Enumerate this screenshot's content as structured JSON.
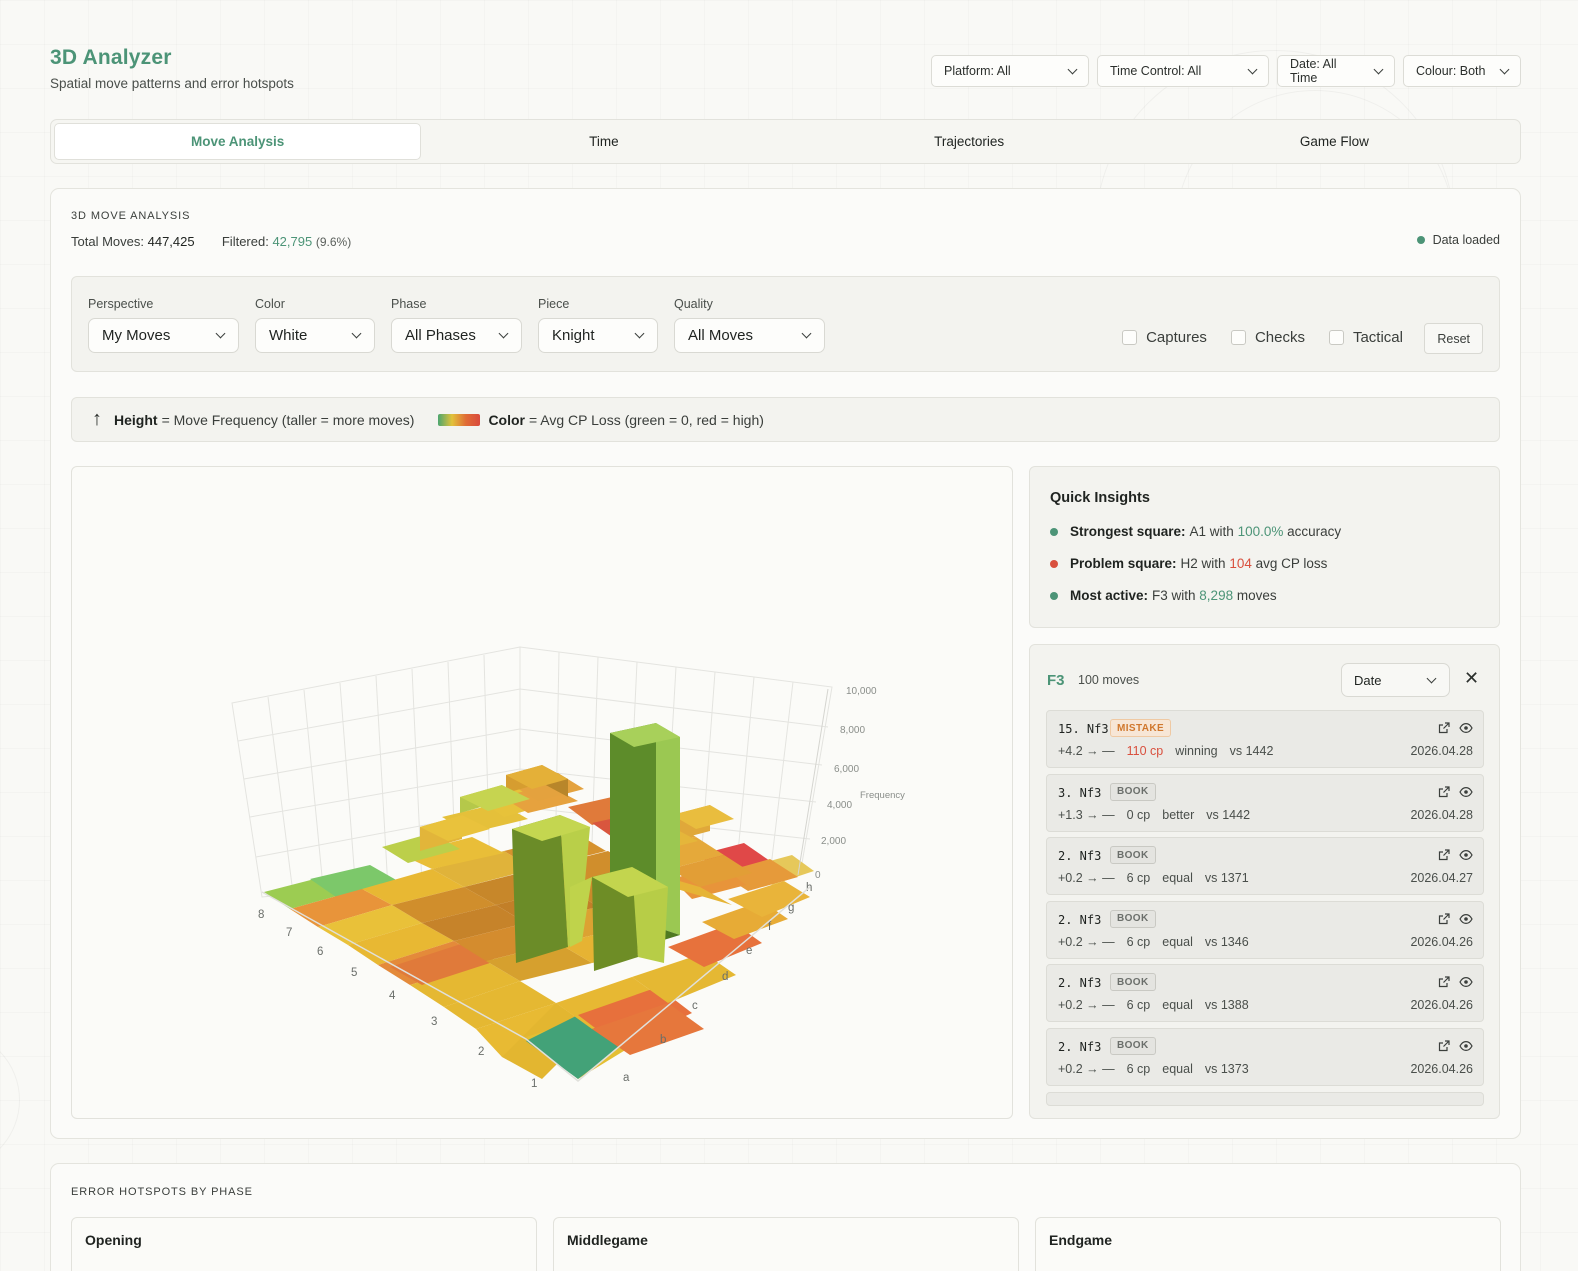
{
  "header": {
    "title": "3D Analyzer",
    "subtitle": "Spatial move patterns and error hotspots"
  },
  "filters": [
    {
      "label": "Platform: All"
    },
    {
      "label": "Time Control: All"
    },
    {
      "label": "Date: All Time"
    },
    {
      "label": "Colour: Both"
    }
  ],
  "tabs": [
    {
      "label": "Move Analysis",
      "active": true
    },
    {
      "label": "Time"
    },
    {
      "label": "Trajectories"
    },
    {
      "label": "Game Flow"
    }
  ],
  "analysis": {
    "section_label": "3D MOVE ANALYSIS",
    "total_label": "Total Moves:",
    "total_value": "447,425",
    "filtered_label": "Filtered:",
    "filtered_value": "42,795",
    "filtered_pct": "(9.6%)",
    "status": "Data loaded"
  },
  "controls": {
    "perspective": {
      "label": "Perspective",
      "value": "My Moves"
    },
    "color": {
      "label": "Color",
      "value": "White"
    },
    "phase": {
      "label": "Phase",
      "value": "All Phases"
    },
    "piece": {
      "label": "Piece",
      "value": "Knight"
    },
    "quality": {
      "label": "Quality",
      "value": "All Moves"
    },
    "checkboxes": [
      "Captures",
      "Checks",
      "Tactical"
    ],
    "reset": "Reset"
  },
  "legend": {
    "height_label": "Height",
    "height_desc": "= Move Frequency (taller = more moves)",
    "color_label": "Color",
    "color_desc": "= Avg CP Loss (green = 0, red = high)"
  },
  "chart_data": {
    "type": "3d-bar",
    "files": [
      "a",
      "b",
      "c",
      "d",
      "e",
      "f",
      "g",
      "h"
    ],
    "ranks": [
      "1",
      "2",
      "3",
      "4",
      "5",
      "6",
      "7",
      "8"
    ],
    "z_ticks": [
      "0",
      "2,000",
      "4,000",
      "6,000",
      "8,000",
      "10,000"
    ],
    "zlabel": "Frequency",
    "zlim": [
      0,
      10000
    ],
    "highlighted_bars": [
      {
        "square": "F3",
        "value": 8298,
        "color": "#9ccc52"
      },
      {
        "square": "C3",
        "value": 6300,
        "color": "#b8cf4a"
      },
      {
        "square": "D2",
        "value": 3800,
        "color": "#b9cf49"
      }
    ]
  },
  "insights": {
    "title": "Quick Insights",
    "items": [
      {
        "label": "Strongest square:",
        "pre": "A1 with ",
        "value": "100.0%",
        "post": " accuracy",
        "color": "#4c9477"
      },
      {
        "label": "Problem square:",
        "pre": "H2 with ",
        "value": "104",
        "post": " avg CP loss",
        "color": "#d9503e"
      },
      {
        "label": "Most active:",
        "pre": "F3 with ",
        "value": "8,298",
        "post": " moves",
        "color": "#4c9477"
      }
    ]
  },
  "moves_panel": {
    "square": "F3",
    "count": "100 moves",
    "sort": "Date",
    "items": [
      {
        "move": "15. Nf3",
        "badge": "MISTAKE",
        "eval": "+4.2 → —",
        "cp": "110 cp",
        "verdict": "winning",
        "opp": "vs 1442",
        "date": "2026.04.28",
        "red": true
      },
      {
        "move": "3. Nf3",
        "badge": "BOOK",
        "eval": "+1.3 → —",
        "cp": "0 cp",
        "verdict": "better",
        "opp": "vs 1442",
        "date": "2026.04.28"
      },
      {
        "move": "2. Nf3",
        "badge": "BOOK",
        "eval": "+0.2 → —",
        "cp": "6 cp",
        "verdict": "equal",
        "opp": "vs 1371",
        "date": "2026.04.27"
      },
      {
        "move": "2. Nf3",
        "badge": "BOOK",
        "eval": "+0.2 → —",
        "cp": "6 cp",
        "verdict": "equal",
        "opp": "vs 1346",
        "date": "2026.04.26"
      },
      {
        "move": "2. Nf3",
        "badge": "BOOK",
        "eval": "+0.2 → —",
        "cp": "6 cp",
        "verdict": "equal",
        "opp": "vs 1388",
        "date": "2026.04.26"
      },
      {
        "move": "2. Nf3",
        "badge": "BOOK",
        "eval": "+0.2 → —",
        "cp": "6 cp",
        "verdict": "equal",
        "opp": "vs 1373",
        "date": "2026.04.26"
      }
    ]
  },
  "hotspots": {
    "section_label": "ERROR HOTSPOTS BY PHASE",
    "phases": [
      "Opening",
      "Middlegame",
      "Endgame"
    ]
  }
}
